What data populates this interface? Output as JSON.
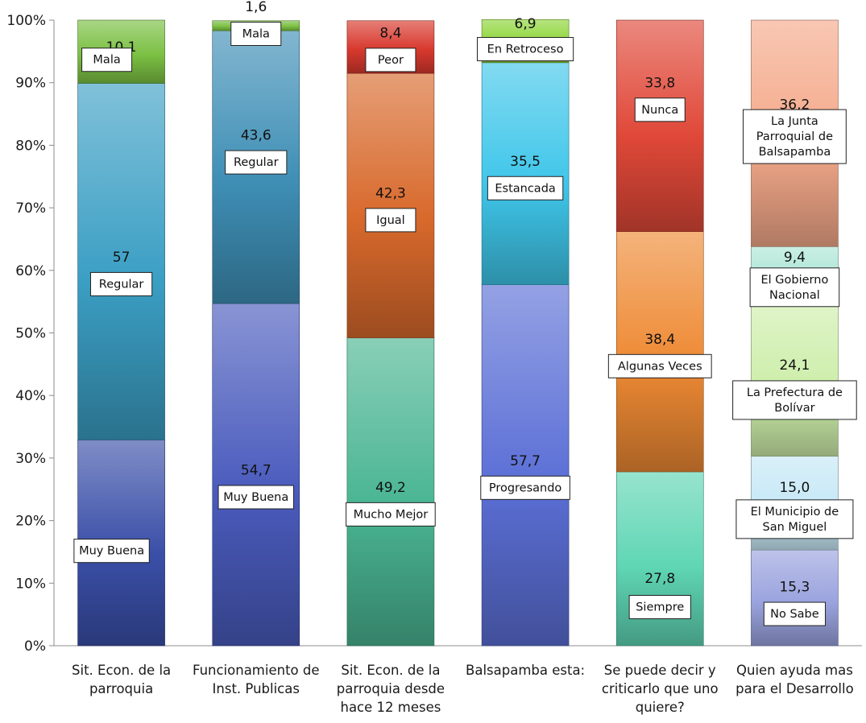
{
  "chart_data": {
    "type": "bar",
    "stacked": true,
    "title": "",
    "xlabel": "",
    "ylabel": "",
    "ylim": [
      0,
      100
    ],
    "y_ticks": [
      "0%",
      "10%",
      "20%",
      "30%",
      "40%",
      "50%",
      "60%",
      "70%",
      "80%",
      "90%",
      "100%"
    ],
    "grid": false,
    "legend": "none",
    "categories": [
      {
        "label": [
          "Sit. Econ. de la",
          "parroquia"
        ],
        "segments": [
          {
            "name": "Muy Buena",
            "value": 32.9,
            "value_label": "32,9",
            "color": "#3a4fa8"
          },
          {
            "name": "Regular",
            "value": 57,
            "value_label": "57",
            "color": "#3b9fc4"
          },
          {
            "name": "Mala",
            "value": 10.1,
            "value_label": "10,1",
            "color": "#7bc043"
          }
        ]
      },
      {
        "label": [
          "Funcionamiento de",
          "Inst. Publicas"
        ],
        "segments": [
          {
            "name": "Muy Buena",
            "value": 54.7,
            "value_label": "54,7",
            "color": "#4a5bbd"
          },
          {
            "name": "Regular",
            "value": 43.6,
            "value_label": "43,6",
            "color": "#3f8fb6"
          },
          {
            "name": "Mala",
            "value": 1.6,
            "value_label": "1,6",
            "color": "#7bc043"
          }
        ]
      },
      {
        "label": [
          "Sit. Econ. de la",
          "parroquia desde",
          "hace 12 meses"
        ],
        "segments": [
          {
            "name": "Mucho Mejor",
            "value": 49.2,
            "value_label": "49,2",
            "color": "#49b592"
          },
          {
            "name": "Igual",
            "value": 42.3,
            "value_label": "42,3",
            "color": "#d8692c"
          },
          {
            "name": "Peor",
            "value": 8.4,
            "value_label": "8,4",
            "color": "#d8392e"
          }
        ]
      },
      {
        "label": [
          "Balsapamba esta:"
        ],
        "segments": [
          {
            "name": "Progresando",
            "value": 57.7,
            "value_label": "57,7",
            "color": "#5b6fd6"
          },
          {
            "name": "Estancada",
            "value": 35.5,
            "value_label": "35,5",
            "color": "#3fc6ea"
          },
          {
            "name": "En Retroceso",
            "value": 6.9,
            "value_label": "6,9",
            "color": "#8fd63a"
          }
        ]
      },
      {
        "label": [
          "Se puede decir y",
          "criticarlo que uno",
          "quiere?"
        ],
        "segments": [
          {
            "name": "Siempre",
            "value": 27.8,
            "value_label": "27,8",
            "color": "#5fd6b4"
          },
          {
            "name": "Algunas Veces",
            "value": 38.4,
            "value_label": "38,4",
            "color": "#ee8a34"
          },
          {
            "name": "Nunca",
            "value": 33.8,
            "value_label": "33,8",
            "color": "#e04838"
          }
        ]
      },
      {
        "label": [
          "Quien ayuda mas",
          "para el Desarrollo"
        ],
        "segments": [
          {
            "name": "No Sabe",
            "value": 15.3,
            "value_label": "15,3",
            "color": "#9aa3de"
          },
          {
            "name": "El Municipio de San Miguel",
            "value": 15.0,
            "value_label": "15,0",
            "color": "#c6e8f6"
          },
          {
            "name": "La Prefectura de Bolívar",
            "value": 24.1,
            "value_label": "24,1",
            "color": "#cdeeaa"
          },
          {
            "name": "El Gobierno Nacional",
            "value": 9.4,
            "value_label": "9,4",
            "color": "#aee6d6"
          },
          {
            "name": "La Junta Parroquial de Balsapamba",
            "value": 36.2,
            "value_label": "36,2",
            "color": "#f4a98a"
          }
        ]
      }
    ]
  }
}
